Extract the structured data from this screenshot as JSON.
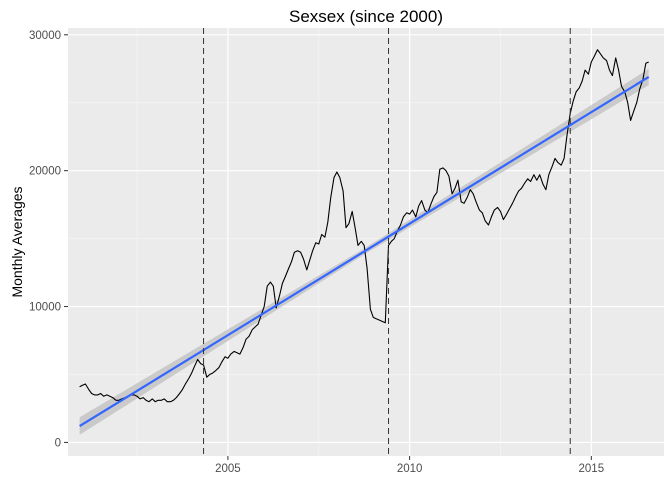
{
  "chart_data": {
    "type": "line",
    "title": "Sexsex (since 2000)",
    "xlabel": "",
    "ylabel": "Monthly Averages",
    "xlim": [
      2000.6,
      2017.0
    ],
    "ylim": [
      -1000,
      30500
    ],
    "x_ticks": [
      2005,
      2010,
      2015
    ],
    "x_tick_labels": [
      "2005",
      "2010",
      "2015"
    ],
    "y_ticks": [
      0,
      10000,
      20000,
      30000
    ],
    "y_tick_labels": [
      "0",
      "10000",
      "20000",
      "30000"
    ],
    "grid": true,
    "legend": "none",
    "vlines": [
      2004.33,
      2009.42,
      2014.42
    ],
    "series": [
      {
        "style": "line",
        "color": "#000000",
        "points": [
          [
            2000.92,
            4100
          ],
          [
            2001.0,
            4200
          ],
          [
            2001.08,
            4300
          ],
          [
            2001.17,
            3900
          ],
          [
            2001.25,
            3600
          ],
          [
            2001.33,
            3500
          ],
          [
            2001.42,
            3500
          ],
          [
            2001.5,
            3600
          ],
          [
            2001.58,
            3400
          ],
          [
            2001.67,
            3500
          ],
          [
            2001.75,
            3400
          ],
          [
            2001.83,
            3300
          ],
          [
            2001.92,
            3100
          ],
          [
            2002.0,
            3100
          ],
          [
            2002.08,
            3200
          ],
          [
            2002.17,
            3300
          ],
          [
            2002.25,
            3400
          ],
          [
            2002.33,
            3500
          ],
          [
            2002.42,
            3500
          ],
          [
            2002.5,
            3400
          ],
          [
            2002.58,
            3200
          ],
          [
            2002.67,
            3300
          ],
          [
            2002.75,
            3100
          ],
          [
            2002.83,
            3000
          ],
          [
            2002.92,
            3200
          ],
          [
            2003.0,
            3000
          ],
          [
            2003.08,
            3100
          ],
          [
            2003.17,
            3100
          ],
          [
            2003.25,
            3200
          ],
          [
            2003.33,
            3000
          ],
          [
            2003.42,
            3000
          ],
          [
            2003.5,
            3100
          ],
          [
            2003.58,
            3300
          ],
          [
            2003.67,
            3600
          ],
          [
            2003.75,
            3900
          ],
          [
            2003.83,
            4300
          ],
          [
            2003.92,
            4700
          ],
          [
            2004.0,
            5100
          ],
          [
            2004.08,
            5600
          ],
          [
            2004.17,
            6100
          ],
          [
            2004.25,
            5800
          ],
          [
            2004.33,
            5700
          ],
          [
            2004.42,
            4800
          ],
          [
            2004.5,
            5000
          ],
          [
            2004.58,
            5100
          ],
          [
            2004.67,
            5300
          ],
          [
            2004.75,
            5500
          ],
          [
            2004.83,
            5900
          ],
          [
            2004.92,
            6300
          ],
          [
            2005.0,
            6200
          ],
          [
            2005.08,
            6500
          ],
          [
            2005.17,
            6700
          ],
          [
            2005.25,
            6600
          ],
          [
            2005.33,
            6500
          ],
          [
            2005.42,
            7000
          ],
          [
            2005.5,
            7600
          ],
          [
            2005.58,
            7800
          ],
          [
            2005.67,
            8300
          ],
          [
            2005.75,
            8500
          ],
          [
            2005.83,
            8700
          ],
          [
            2005.92,
            9400
          ],
          [
            2006.0,
            10000
          ],
          [
            2006.08,
            11500
          ],
          [
            2006.17,
            11800
          ],
          [
            2006.25,
            11500
          ],
          [
            2006.33,
            9900
          ],
          [
            2006.42,
            10800
          ],
          [
            2006.5,
            11700
          ],
          [
            2006.58,
            12200
          ],
          [
            2006.67,
            12800
          ],
          [
            2006.75,
            13300
          ],
          [
            2006.83,
            14000
          ],
          [
            2006.92,
            14100
          ],
          [
            2007.0,
            14000
          ],
          [
            2007.08,
            13500
          ],
          [
            2007.17,
            12700
          ],
          [
            2007.25,
            13400
          ],
          [
            2007.33,
            14100
          ],
          [
            2007.42,
            14700
          ],
          [
            2007.5,
            14600
          ],
          [
            2007.58,
            15300
          ],
          [
            2007.67,
            15100
          ],
          [
            2007.75,
            16200
          ],
          [
            2007.83,
            18000
          ],
          [
            2007.92,
            19500
          ],
          [
            2008.0,
            19900
          ],
          [
            2008.08,
            19500
          ],
          [
            2008.17,
            18500
          ],
          [
            2008.25,
            15800
          ],
          [
            2008.33,
            16100
          ],
          [
            2008.42,
            17000
          ],
          [
            2008.5,
            15800
          ],
          [
            2008.58,
            14500
          ],
          [
            2008.67,
            14800
          ],
          [
            2008.75,
            14500
          ],
          [
            2008.83,
            12800
          ],
          [
            2008.92,
            9800
          ],
          [
            2009.0,
            9200
          ],
          [
            2009.08,
            9100
          ],
          [
            2009.17,
            9000
          ],
          [
            2009.25,
            8900
          ],
          [
            2009.33,
            8800
          ],
          [
            2009.42,
            14500
          ],
          [
            2009.5,
            14800
          ],
          [
            2009.58,
            15000
          ],
          [
            2009.67,
            15600
          ],
          [
            2009.75,
            16000
          ],
          [
            2009.83,
            16600
          ],
          [
            2009.92,
            16900
          ],
          [
            2010.0,
            16800
          ],
          [
            2010.08,
            17100
          ],
          [
            2010.17,
            16600
          ],
          [
            2010.25,
            17400
          ],
          [
            2010.33,
            17800
          ],
          [
            2010.42,
            17100
          ],
          [
            2010.5,
            16900
          ],
          [
            2010.58,
            17500
          ],
          [
            2010.67,
            18100
          ],
          [
            2010.75,
            18400
          ],
          [
            2010.83,
            20100
          ],
          [
            2010.92,
            20200
          ],
          [
            2011.0,
            20000
          ],
          [
            2011.08,
            19600
          ],
          [
            2011.17,
            18300
          ],
          [
            2011.25,
            18700
          ],
          [
            2011.33,
            19300
          ],
          [
            2011.42,
            17700
          ],
          [
            2011.5,
            17600
          ],
          [
            2011.58,
            18000
          ],
          [
            2011.67,
            18600
          ],
          [
            2011.75,
            18300
          ],
          [
            2011.83,
            17700
          ],
          [
            2011.92,
            17100
          ],
          [
            2012.0,
            16900
          ],
          [
            2012.08,
            16300
          ],
          [
            2012.17,
            16000
          ],
          [
            2012.25,
            16600
          ],
          [
            2012.33,
            17100
          ],
          [
            2012.42,
            17300
          ],
          [
            2012.5,
            17000
          ],
          [
            2012.58,
            16400
          ],
          [
            2012.67,
            16800
          ],
          [
            2012.75,
            17200
          ],
          [
            2012.83,
            17600
          ],
          [
            2012.92,
            18100
          ],
          [
            2013.0,
            18500
          ],
          [
            2013.08,
            18700
          ],
          [
            2013.17,
            19100
          ],
          [
            2013.25,
            19400
          ],
          [
            2013.33,
            19200
          ],
          [
            2013.42,
            19700
          ],
          [
            2013.5,
            19300
          ],
          [
            2013.58,
            19700
          ],
          [
            2013.67,
            19000
          ],
          [
            2013.75,
            18600
          ],
          [
            2013.83,
            19700
          ],
          [
            2013.92,
            20300
          ],
          [
            2014.0,
            20900
          ],
          [
            2014.08,
            20600
          ],
          [
            2014.17,
            20400
          ],
          [
            2014.25,
            20900
          ],
          [
            2014.33,
            22600
          ],
          [
            2014.42,
            24200
          ],
          [
            2014.5,
            25100
          ],
          [
            2014.58,
            25800
          ],
          [
            2014.67,
            26100
          ],
          [
            2014.75,
            26600
          ],
          [
            2014.83,
            27400
          ],
          [
            2014.92,
            27100
          ],
          [
            2015.0,
            28000
          ],
          [
            2015.08,
            28400
          ],
          [
            2015.17,
            28900
          ],
          [
            2015.25,
            28600
          ],
          [
            2015.33,
            28300
          ],
          [
            2015.42,
            28100
          ],
          [
            2015.5,
            27400
          ],
          [
            2015.58,
            27000
          ],
          [
            2015.67,
            28300
          ],
          [
            2015.75,
            27400
          ],
          [
            2015.83,
            26200
          ],
          [
            2015.92,
            25800
          ],
          [
            2016.0,
            25000
          ],
          [
            2016.08,
            23700
          ],
          [
            2016.17,
            24400
          ],
          [
            2016.25,
            25000
          ],
          [
            2016.33,
            26000
          ],
          [
            2016.42,
            26700
          ],
          [
            2016.5,
            27900
          ],
          [
            2016.58,
            28000
          ]
        ]
      },
      {
        "style": "trend",
        "color": "#3366ff",
        "band_color": "#c4c4c4",
        "x": [
          2000.92,
          2016.58
        ],
        "y": [
          1200,
          26900
        ],
        "band_halfwidth": [
          650,
          600
        ],
        "band_mid_halfwidth": 220
      }
    ]
  }
}
